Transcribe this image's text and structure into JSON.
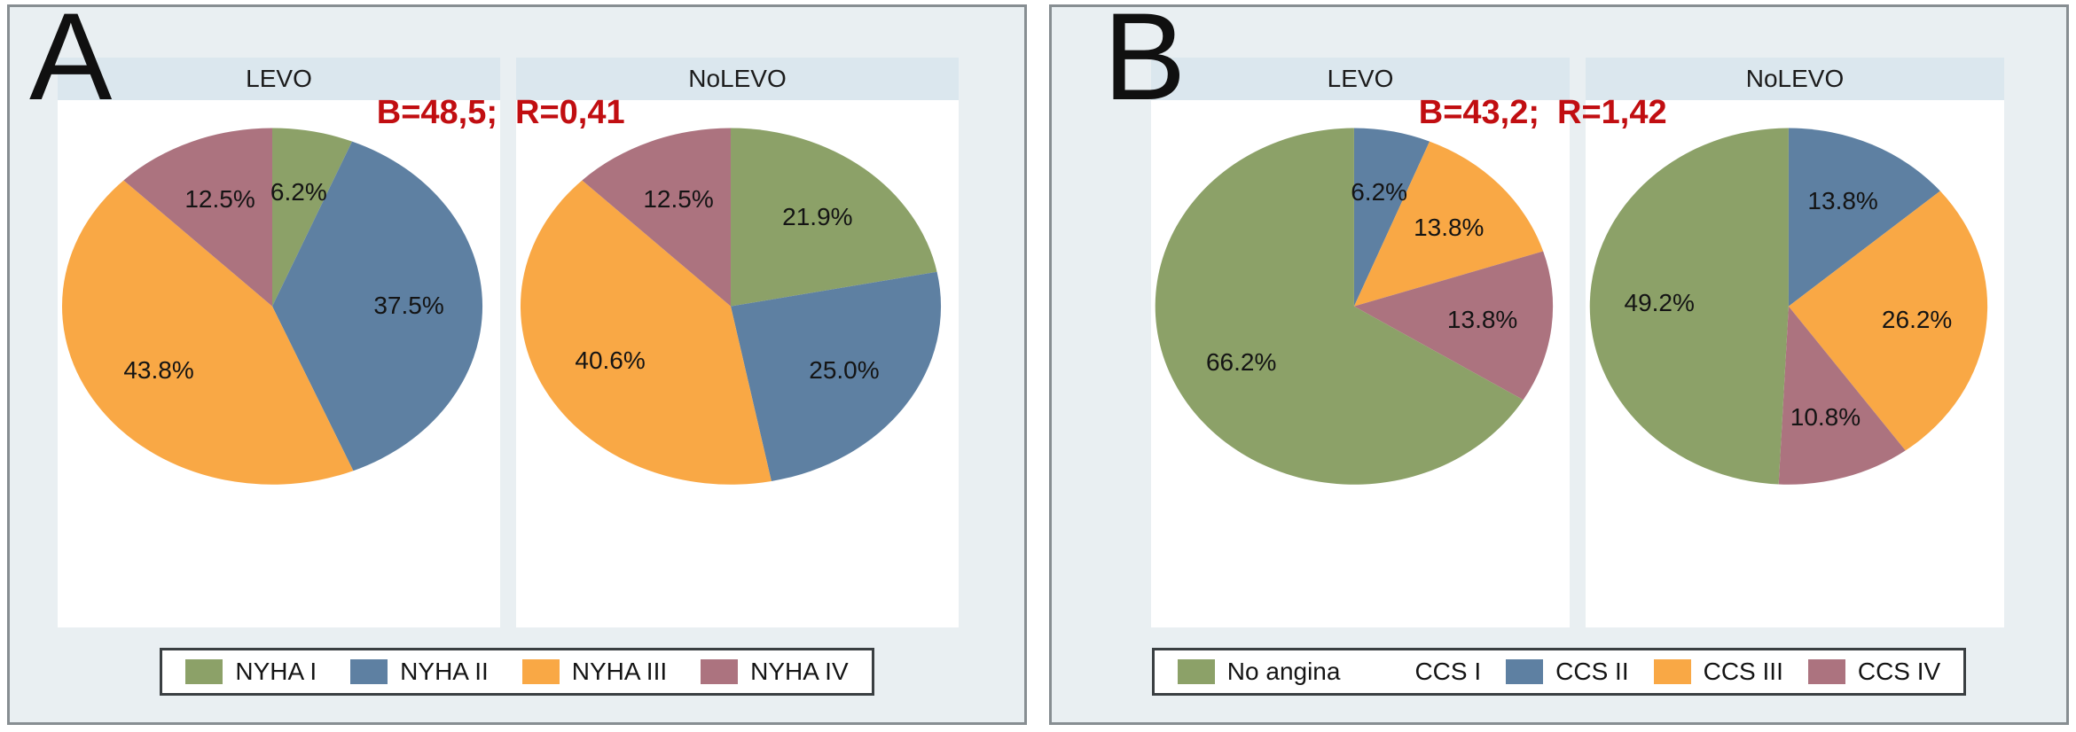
{
  "figure": {
    "description": "Two-panel figure of pie charts comparing LEVO vs NoLEVO groups",
    "colors": {
      "green": "#8CA168",
      "blue": "#5E80A2",
      "orange": "#F9A845",
      "rose": "#AC737F",
      "white_swatch": "#FFFFFF",
      "stat_red": "#C10E11",
      "panel_bg": "#E9EFF2",
      "header_bg": "#DBE7EE",
      "panel_border": "#878E92"
    }
  },
  "panels": [
    {
      "letter": "A",
      "stat": {
        "part1": "B=48,5;",
        "part2": "R=0,41"
      },
      "columns": [
        {
          "title": "LEVO"
        },
        {
          "title": "NoLEVO"
        }
      ],
      "legend": [
        {
          "label": "NYHA I",
          "color": "#8CA168"
        },
        {
          "label": "NYHA II",
          "color": "#5E80A2"
        },
        {
          "label": "NYHA III",
          "color": "#F9A845"
        },
        {
          "label": "NYHA IV",
          "color": "#AC737F"
        }
      ]
    },
    {
      "letter": "B",
      "stat": {
        "part1": "B=43,2;",
        "part2": "R=1,42"
      },
      "columns": [
        {
          "title": "LEVO"
        },
        {
          "title": "NoLEVO"
        }
      ],
      "legend": [
        {
          "label": "No angina",
          "color": "#8CA168"
        },
        {
          "label": "CCS I",
          "color": "#FFFFFF"
        },
        {
          "label": "CCS II",
          "color": "#5E80A2"
        },
        {
          "label": "CCS III",
          "color": "#F9A845"
        },
        {
          "label": "CCS IV",
          "color": "#AC737F"
        }
      ]
    }
  ],
  "chart_data": [
    {
      "type": "pie",
      "panel": "A",
      "group": "LEVO",
      "annotation": "B=48,5; R=0,41",
      "start_angle_deg": 0,
      "direction": "clockwise",
      "slices": [
        {
          "label": "NYHA I",
          "value": 6.2,
          "display": "6.2%",
          "color": "#8CA168"
        },
        {
          "label": "NYHA II",
          "value": 37.5,
          "display": "37.5%",
          "color": "#5E80A2"
        },
        {
          "label": "NYHA III",
          "value": 43.8,
          "display": "43.8%",
          "color": "#F9A845"
        },
        {
          "label": "NYHA IV",
          "value": 12.5,
          "display": "12.5%",
          "color": "#AC737F"
        }
      ]
    },
    {
      "type": "pie",
      "panel": "A",
      "group": "NoLEVO",
      "annotation": "B=48,5; R=0,41",
      "start_angle_deg": 0,
      "direction": "clockwise",
      "slices": [
        {
          "label": "NYHA I",
          "value": 21.9,
          "display": "21.9%",
          "color": "#8CA168"
        },
        {
          "label": "NYHA II",
          "value": 25.0,
          "display": "25.0%",
          "color": "#5E80A2"
        },
        {
          "label": "NYHA III",
          "value": 40.6,
          "display": "40.6%",
          "color": "#F9A845"
        },
        {
          "label": "NYHA IV",
          "value": 12.5,
          "display": "12.5%",
          "color": "#AC737F"
        }
      ]
    },
    {
      "type": "pie",
      "panel": "B",
      "group": "LEVO",
      "annotation": "B=43,2; R=1,42",
      "start_angle_deg": 0,
      "direction": "clockwise",
      "slices": [
        {
          "label": "CCS I",
          "value": 0,
          "display": "",
          "color": "#FFFFFF"
        },
        {
          "label": "CCS II",
          "value": 6.2,
          "display": "6.2%",
          "color": "#5E80A2"
        },
        {
          "label": "CCS III",
          "value": 13.8,
          "display": "13.8%",
          "color": "#F9A845"
        },
        {
          "label": "CCS IV",
          "value": 13.8,
          "display": "13.8%",
          "color": "#AC737F"
        },
        {
          "label": "No angina",
          "value": 66.2,
          "display": "66.2%",
          "color": "#8CA168"
        }
      ]
    },
    {
      "type": "pie",
      "panel": "B",
      "group": "NoLEVO",
      "annotation": "B=43,2; R=1,42",
      "start_angle_deg": 0,
      "direction": "clockwise",
      "slices": [
        {
          "label": "CCS I",
          "value": 0,
          "display": "",
          "color": "#FFFFFF"
        },
        {
          "label": "CCS II",
          "value": 13.8,
          "display": "13.8%",
          "color": "#5E80A2"
        },
        {
          "label": "CCS III",
          "value": 26.2,
          "display": "26.2%",
          "color": "#F9A845"
        },
        {
          "label": "CCS IV",
          "value": 10.8,
          "display": "10.8%",
          "color": "#AC737F"
        },
        {
          "label": "No angina",
          "value": 49.2,
          "display": "49.2%",
          "color": "#8CA168"
        }
      ]
    }
  ]
}
